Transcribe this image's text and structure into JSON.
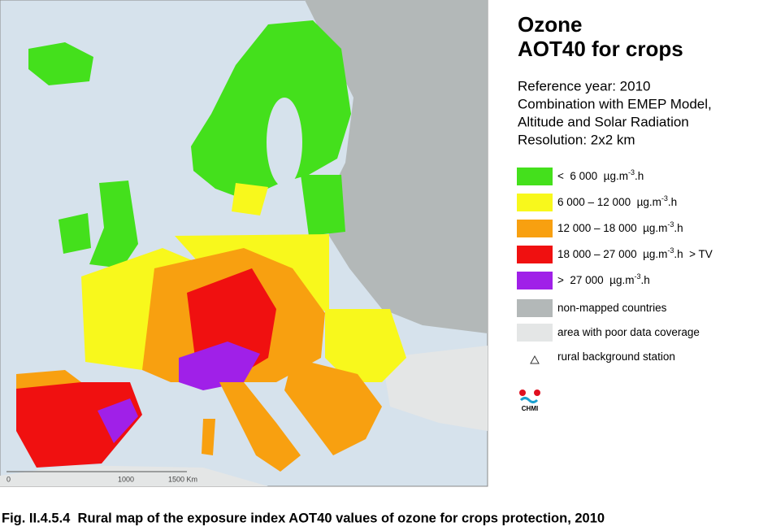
{
  "title": [
    "Ozone",
    "AOT40 for crops"
  ],
  "info": [
    "Reference year: 2010",
    "Combination with EMEP Model,",
    "Altitude and Solar Radiation",
    "Resolution: 2x2 km"
  ],
  "legend": [
    {
      "color": "#44e01c",
      "label": "<  6 000  µg.m",
      "sup": "-3",
      "suffix": ".h"
    },
    {
      "color": "#f8f81c",
      "label": "6 000 – 12 000  µg.m",
      "sup": "-3",
      "suffix": ".h"
    },
    {
      "color": "#f8a010",
      "label": "12 000 – 18 000  µg.m",
      "sup": "-3",
      "suffix": ".h"
    },
    {
      "color": "#f01010",
      "label": "18 000 – 27 000  µg.m",
      "sup": "-3",
      "suffix": ".h  > TV"
    },
    {
      "color": "#a020e8",
      "label": ">  27 000  µg.m",
      "sup": "-3",
      "suffix": ".h"
    }
  ],
  "legend_other": [
    {
      "color": "#b3b8b8",
      "label": "non-mapped countries"
    },
    {
      "color": "#e4e6e6",
      "label": "area with poor data coverage"
    },
    {
      "label": "rural background station"
    }
  ],
  "logo": "CHMI",
  "scale": [
    "0",
    "1000",
    "1500 Km"
  ],
  "caption": "Fig. II.4.5.4  Rural map of the exposure index AOT40 values of ozone for crops protection, 2010"
}
